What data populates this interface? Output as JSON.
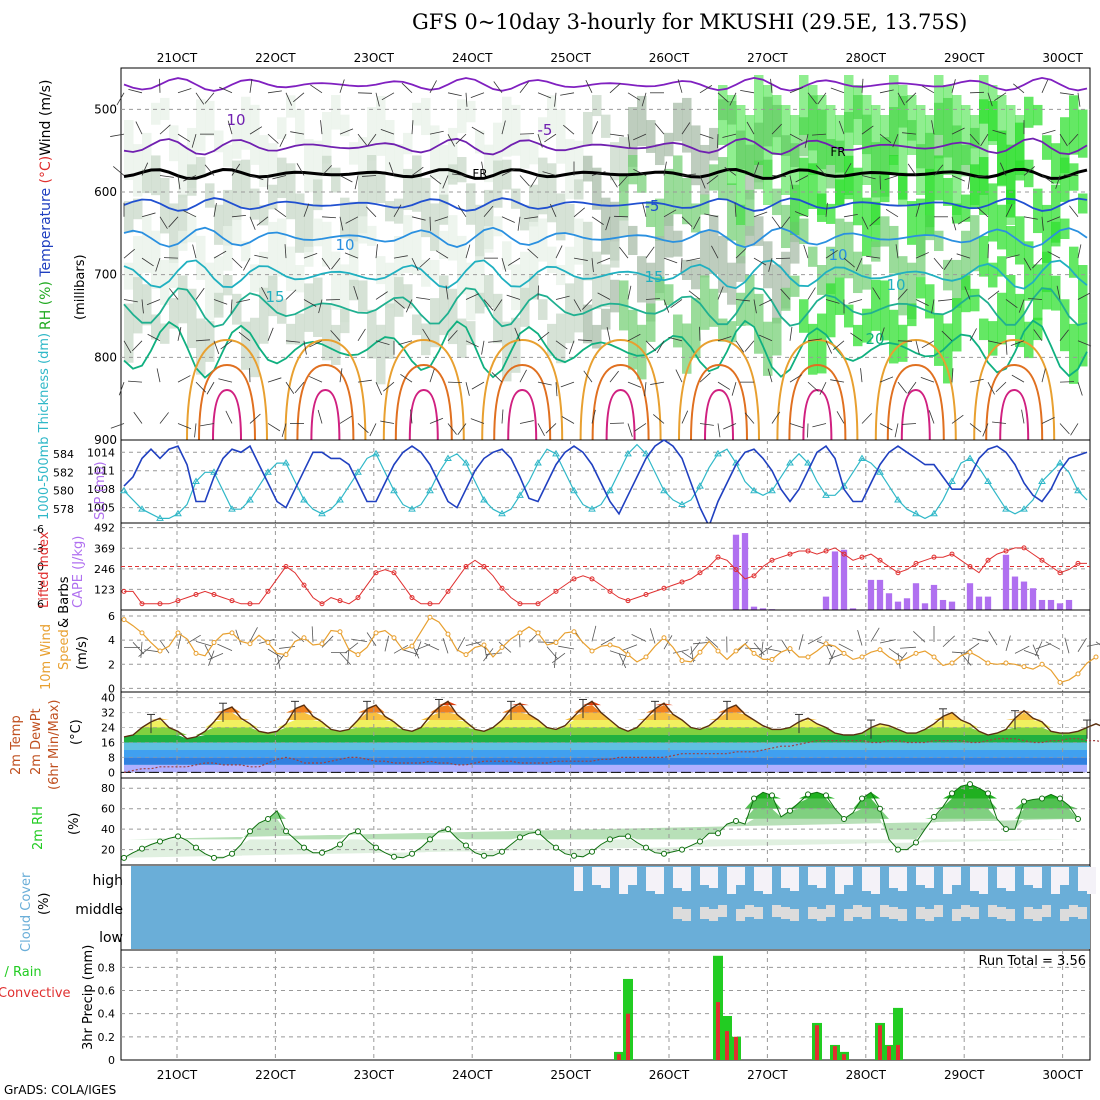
{
  "title": "GFS 0~10day 3-hourly for MKUSHI (29.5E, 13.75S)",
  "footer": "GrADS: COLA/IGES",
  "date_labels": [
    "21OCT",
    "22OCT",
    "23OCT",
    "24OCT",
    "25OCT",
    "26OCT",
    "27OCT",
    "28OCT",
    "29OCT",
    "30OCT"
  ],
  "colors": {
    "grid": "#999999",
    "green": "#22cc22",
    "red": "#e03030",
    "purple": "#b070f0",
    "orange": "#e8a030",
    "blue": "#2040c0",
    "cyan": "#30b8c8",
    "cloud": "#6aaed8"
  },
  "chart_data": [
    {
      "type": "heatmap",
      "panel": "upper-air",
      "ylabel_parts": [
        "RH (%)",
        "Temperature (°C)",
        "Wind (m/s)"
      ],
      "ylabel_units": "(millibars)",
      "y_ticks": [
        500,
        600,
        700,
        800,
        900
      ],
      "ylim": [
        450,
        900
      ],
      "contour_labels": [
        "-5",
        "FR",
        "FR",
        "-5",
        "10",
        "10",
        "15",
        "15",
        "20",
        "10",
        "10"
      ]
    },
    {
      "type": "line",
      "panel": "thickness-slp",
      "ylabel_left": "1000-500mb Thickness (dm)",
      "ylabel_right": "SLP (mb)",
      "y_ticks_left": [
        578,
        580,
        582,
        584
      ],
      "y_ticks_right": [
        1005,
        1008,
        1011,
        1014
      ],
      "series": [
        {
          "name": "SLP (mb)",
          "values": [
            1008.5,
            1010,
            1013,
            1014.5,
            1013,
            1014.5,
            1015,
            1012,
            1006,
            1006,
            1010,
            1013,
            1014.5,
            1014,
            1015,
            1012,
            1009,
            1006,
            1005,
            1008,
            1011,
            1014,
            1014,
            1013,
            1013,
            1012,
            1009,
            1006,
            1006,
            1009,
            1012,
            1014,
            1015,
            1014,
            1012,
            1009,
            1006,
            1005,
            1008,
            1011,
            1013,
            1014,
            1014.5,
            1013,
            1010,
            1006.5,
            1006,
            1009,
            1012,
            1014,
            1015,
            1014,
            1012,
            1009,
            1006,
            1004,
            1007,
            1010,
            1013,
            1015,
            1016,
            1015,
            1013,
            1009,
            1005,
            1002,
            1006,
            1009,
            1012,
            1014,
            1014.5,
            1013,
            1011,
            1008,
            1006,
            1008,
            1011,
            1014,
            1015,
            1013,
            1008,
            1006,
            1006,
            1009,
            1012,
            1014,
            1015,
            1014,
            1013,
            1012,
            1012,
            1010,
            1008,
            1008,
            1010,
            1013,
            1014.5,
            1015,
            1014,
            1012,
            1009,
            1007,
            1006,
            1008,
            1011,
            1013,
            1013.5,
            1014
          ]
        },
        {
          "name": "1000-500mb Thickness (dm)",
          "values": [
            580,
            579,
            578,
            577.5,
            577,
            577,
            577.5,
            578.5,
            581,
            582,
            582,
            580,
            578,
            578,
            579,
            580.5,
            582,
            583,
            583,
            581,
            579,
            578,
            577.5,
            578,
            579,
            580.5,
            582,
            583.5,
            584,
            582,
            580,
            578.5,
            578,
            578.5,
            580,
            582,
            583.5,
            584,
            583,
            581,
            579,
            578,
            577.5,
            578,
            579.5,
            581,
            583,
            584.5,
            584,
            582,
            580,
            578.5,
            578,
            578.5,
            580,
            582,
            584,
            585,
            584,
            582,
            580,
            579,
            578.5,
            579,
            580.5,
            582.5,
            584,
            584.5,
            583,
            581,
            580,
            579.5,
            580,
            581.5,
            583,
            584,
            583,
            581,
            579.5,
            579.5,
            580.5,
            582,
            583.5,
            583,
            582,
            580.5,
            579,
            578,
            577.5,
            577,
            577.5,
            579,
            581,
            583,
            583.5,
            582.5,
            581,
            579.5,
            578,
            577.5,
            578,
            579,
            581,
            582,
            583,
            582,
            580,
            579
          ]
        }
      ]
    },
    {
      "type": "bar",
      "panel": "cape-li",
      "ylabel_left": "Lifted Index",
      "ylabel_right": "CAPE (J/kg)",
      "y_ticks_left": [
        -6,
        -3,
        0,
        3,
        6
      ],
      "y_ticks_right": [
        123,
        246,
        369,
        492
      ],
      "series": [
        {
          "name": "Lifted Index",
          "values": [
            4,
            4,
            6,
            6,
            6,
            6,
            5.5,
            5,
            4.5,
            4,
            4.5,
            5,
            5.5,
            6,
            6,
            6,
            4,
            2,
            0,
            1,
            3,
            5,
            6,
            5,
            5.5,
            6,
            5,
            3,
            1,
            0.5,
            1,
            3,
            5,
            6,
            6,
            6,
            4,
            2,
            0,
            -1,
            0,
            1.5,
            3.5,
            5,
            6,
            6,
            6,
            5,
            4,
            3,
            2,
            1.5,
            2,
            3,
            4,
            5,
            5.5,
            5,
            4.5,
            4,
            3.5,
            3,
            2.5,
            2,
            1,
            0,
            -1.5,
            -1,
            0.5,
            2,
            1.5,
            0,
            -1,
            -1.5,
            -2,
            -2.5,
            -2.5,
            -2,
            -2.5,
            -3,
            -2,
            -1,
            -1.5,
            -2,
            -1,
            0,
            1,
            0.5,
            -0.5,
            -1,
            -1.5,
            -1.5,
            -2,
            -1,
            0,
            1,
            -1,
            -2,
            -2.5,
            -3,
            -3,
            -2,
            -1,
            0,
            1,
            0.5,
            -0.5,
            -0.5
          ]
        },
        {
          "name": "CAPE (J/kg)",
          "values": [
            0,
            0,
            0,
            0,
            0,
            0,
            0,
            0,
            0,
            0,
            0,
            0,
            0,
            0,
            0,
            0,
            0,
            0,
            0,
            0,
            0,
            0,
            0,
            0,
            0,
            0,
            0,
            0,
            0,
            0,
            0,
            0,
            0,
            0,
            0,
            0,
            0,
            0,
            0,
            0,
            0,
            0,
            0,
            0,
            0,
            0,
            0,
            0,
            0,
            0,
            0,
            0,
            0,
            0,
            0,
            0,
            0,
            0,
            0,
            0,
            0,
            0,
            0,
            0,
            0,
            0,
            0,
            0,
            450,
            460,
            20,
            10,
            5,
            0,
            0,
            0,
            0,
            0,
            80,
            350,
            360,
            10,
            0,
            180,
            180,
            100,
            50,
            70,
            160,
            40,
            150,
            60,
            50,
            0,
            160,
            80,
            80,
            0,
            330,
            200,
            170,
            130,
            60,
            60,
            40,
            60,
            0,
            0
          ]
        }
      ]
    },
    {
      "type": "line",
      "panel": "wind10m",
      "ylabel": "10m Wind Speed & Barbs (m/s)",
      "y_ticks": [
        0,
        2,
        4,
        6
      ],
      "series": [
        {
          "name": "Speed",
          "values": [
            5.7,
            5.2,
            4.6,
            3.8,
            3.1,
            3.5,
            4.6,
            4.1,
            2.9,
            2.7,
            3.8,
            4.5,
            4.6,
            3.9,
            3.7,
            4.4,
            3.8,
            2.9,
            2.8,
            3.9,
            4.2,
            3.6,
            3.7,
            4.8,
            4.7,
            3.2,
            2.8,
            3.4,
            4.6,
            4.8,
            4.2,
            3.2,
            3.5,
            4.7,
            5.9,
            5.5,
            4.5,
            3.2,
            2.8,
            3.4,
            3.6,
            2.6,
            3.4,
            4.1,
            4.6,
            5.1,
            4.6,
            3.6,
            3.8,
            4.6,
            4.7,
            3.8,
            3.1,
            3.5,
            3.6,
            3.4,
            2.8,
            2.2,
            2.6,
            3.5,
            4.2,
            3.4,
            2.3,
            2.2,
            3.0,
            3.9,
            3.1,
            2.4,
            3.1,
            3.7,
            2.9,
            2.4,
            2.4,
            3.0,
            3.3,
            2.6,
            2.6,
            3.1,
            3.7,
            3.5,
            2.9,
            2.4,
            2.6,
            3.0,
            3.2,
            2.6,
            2.2,
            2.5,
            2.9,
            3.1,
            2.6,
            1.9,
            2.1,
            2.7,
            3.0,
            2.6,
            2.1,
            2.0,
            2.1,
            2.0,
            1.8,
            1.6,
            2.0,
            1.5,
            0.5,
            0.7,
            1.2,
            2.1,
            2.6
          ]
        }
      ]
    },
    {
      "type": "area",
      "panel": "temp2m",
      "ylabel": "2m Temp 2m DewPt (6hr Min/Max) (°C)",
      "y_ticks": [
        0,
        8,
        16,
        24,
        32,
        40
      ],
      "series": [
        {
          "name": "2m Temp",
          "values": [
            19,
            20,
            24,
            27,
            29,
            24,
            22,
            18,
            19,
            22,
            27,
            33,
            35,
            29,
            26,
            22,
            21,
            22,
            26,
            34,
            36,
            30,
            27,
            23,
            22,
            23,
            28,
            34,
            36,
            30,
            27,
            23,
            22,
            24,
            30,
            35,
            38,
            31,
            27,
            23,
            22,
            24,
            28,
            34,
            37,
            31,
            28,
            24,
            23,
            25,
            30,
            35,
            38,
            32,
            28,
            24,
            22,
            24,
            29,
            34,
            37,
            31,
            28,
            24,
            23,
            25,
            29,
            34,
            36,
            31,
            28,
            25,
            23,
            23,
            24,
            27,
            29,
            26,
            24,
            21,
            20,
            20,
            21,
            24,
            26,
            25,
            23,
            21,
            21,
            23,
            26,
            30,
            32,
            28,
            26,
            22,
            20,
            21,
            23,
            29,
            33,
            29,
            27,
            22,
            21,
            21,
            22,
            24,
            26,
            24,
            22
          ]
        },
        {
          "name": "2m DewPt",
          "values": [
            0,
            1,
            2,
            2,
            3,
            3,
            3,
            3,
            4,
            5,
            5,
            4,
            4,
            4,
            3,
            3,
            5,
            7,
            8,
            7,
            5,
            5,
            5,
            6,
            7,
            8,
            8,
            7,
            6,
            6,
            5,
            5,
            5,
            5,
            6,
            5,
            5,
            4,
            4,
            5,
            6,
            6,
            6,
            6,
            5,
            5,
            5,
            5,
            6,
            6,
            6,
            6,
            6,
            7,
            7,
            8,
            8,
            8,
            8,
            8,
            8,
            9,
            10,
            10,
            10,
            10,
            10,
            10,
            11,
            11,
            11,
            12,
            13,
            14,
            14,
            15,
            16,
            17,
            17,
            17,
            17,
            17,
            17,
            16,
            16,
            17,
            17,
            16,
            16,
            16,
            17,
            17,
            17,
            17,
            16,
            16,
            17,
            18,
            18,
            18,
            17,
            16,
            16,
            17,
            17,
            18,
            18,
            17,
            17,
            16,
            16
          ]
        }
      ]
    },
    {
      "type": "area",
      "panel": "rh2m",
      "ylabel": "2m RH (%)",
      "y_ticks": [
        20,
        40,
        60,
        80
      ],
      "series": [
        {
          "name": "2m RH",
          "values": [
            12,
            17,
            21,
            25,
            28,
            31,
            33,
            29,
            22,
            16,
            12,
            12,
            16,
            25,
            38,
            46,
            50,
            58,
            38,
            30,
            22,
            17,
            17,
            20,
            25,
            35,
            38,
            29,
            22,
            17,
            13,
            12,
            16,
            22,
            30,
            38,
            40,
            31,
            24,
            17,
            14,
            14,
            18,
            25,
            32,
            36,
            37,
            29,
            22,
            16,
            14,
            13,
            18,
            25,
            30,
            33,
            33,
            27,
            22,
            17,
            16,
            18,
            20,
            24,
            28,
            36,
            36,
            45,
            48,
            45,
            70,
            76,
            73,
            52,
            58,
            66,
            74,
            76,
            73,
            60,
            50,
            56,
            70,
            76,
            60,
            30,
            20,
            20,
            27,
            40,
            52,
            62,
            75,
            82,
            84,
            80,
            75,
            50,
            40,
            40,
            67,
            69,
            70,
            74,
            70,
            63,
            50
          ]
        }
      ]
    },
    {
      "type": "heatmap",
      "panel": "cloud",
      "ylabel": "Cloud Cover (%)",
      "y_ticks": [
        "high",
        "middle",
        "low"
      ]
    },
    {
      "type": "bar",
      "panel": "precip",
      "ylabel": "3hr Precip (mm)",
      "ylabel_left_parts": [
        "Total / Rain",
        "Convective"
      ],
      "y_ticks": [
        0,
        0.2,
        0.4,
        0.6,
        0.8
      ],
      "annotation": "Run Total = 3.56",
      "bars": [
        {
          "x_index": 55,
          "total": 0.07,
          "convective": 0.05
        },
        {
          "x_index": 56,
          "total": 0.7,
          "convective": 0.4
        },
        {
          "x_index": 66,
          "total": 0.9,
          "convective": 0.5
        },
        {
          "x_index": 67,
          "total": 0.38,
          "convective": 0.25
        },
        {
          "x_index": 68,
          "total": 0.2,
          "convective": 0.2
        },
        {
          "x_index": 77,
          "total": 0.32,
          "convective": 0.3
        },
        {
          "x_index": 79,
          "total": 0.13,
          "convective": 0.12
        },
        {
          "x_index": 80,
          "total": 0.07,
          "convective": 0.05
        },
        {
          "x_index": 84,
          "total": 0.32,
          "convective": 0.3
        },
        {
          "x_index": 85,
          "total": 0.13,
          "convective": 0.12
        },
        {
          "x_index": 86,
          "total": 0.45,
          "convective": 0.13
        }
      ]
    }
  ]
}
